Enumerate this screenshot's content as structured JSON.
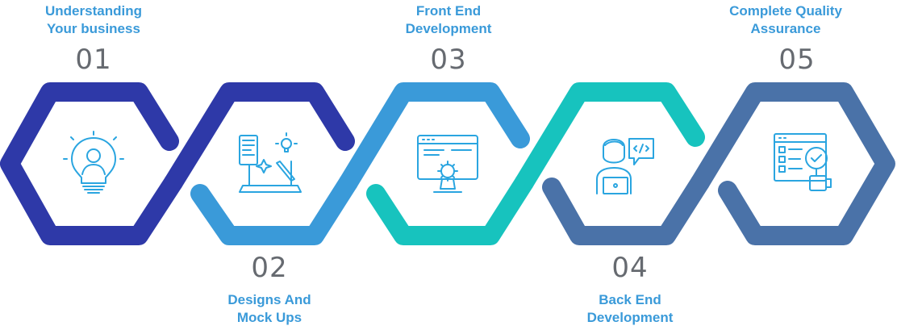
{
  "colors": {
    "step1": "#2e39a8",
    "step2": "#3a9ad9",
    "step3": "#17c3be",
    "step4": "#4a72a8",
    "step5": "#4a72a8",
    "icon": "#2aa5e0",
    "title": "#3a9ad9",
    "number": "#666a70"
  },
  "steps": [
    {
      "number": "01",
      "title_line1": "Understanding",
      "title_line2": "Your business",
      "icon": "lightbulb-person-icon"
    },
    {
      "number": "02",
      "title_line1": "Designs And",
      "title_line2": "Mock Ups",
      "icon": "design-laptop-icon"
    },
    {
      "number": "03",
      "title_line1": "Front End",
      "title_line2": "Development",
      "icon": "monitor-gear-icon"
    },
    {
      "number": "04",
      "title_line1": "Back End",
      "title_line2": "Development",
      "icon": "developer-code-icon"
    },
    {
      "number": "05",
      "title_line1": "Complete Quality",
      "title_line2": "Assurance",
      "icon": "checklist-magnifier-icon"
    }
  ]
}
